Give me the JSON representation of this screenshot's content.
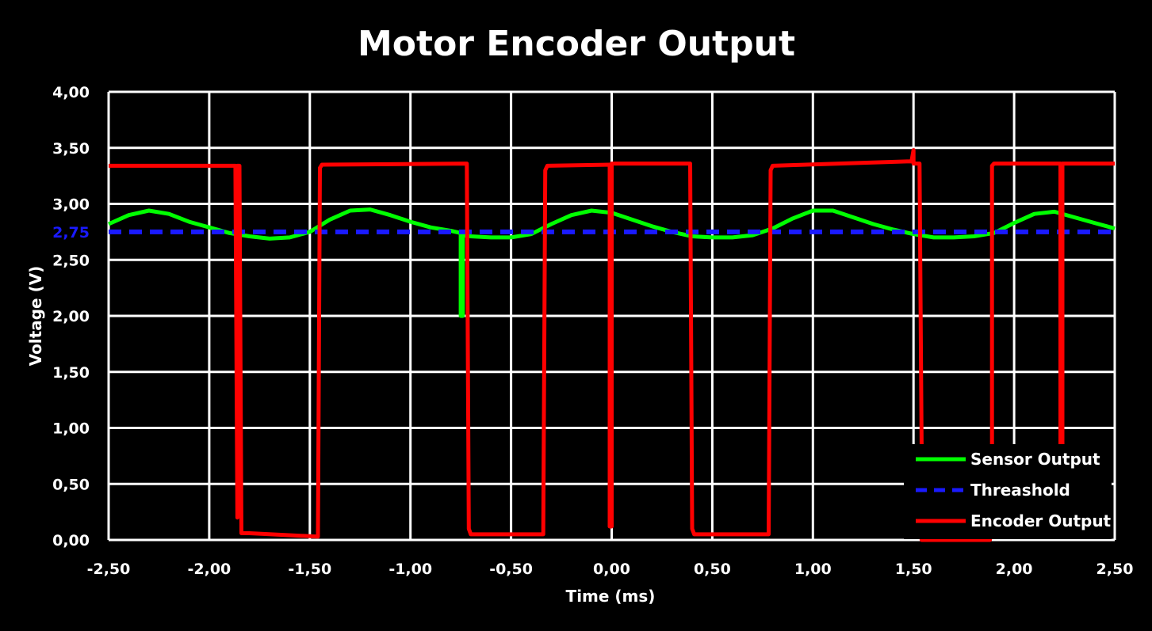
{
  "chart_data": {
    "type": "line",
    "title": "Motor Encoder Output",
    "xlabel": "Time (ms)",
    "ylabel": "Voltage (V)",
    "xlim": [
      -2.5,
      2.5
    ],
    "ylim": [
      0,
      4
    ],
    "x_ticks": [
      "-2,50",
      "-2,00",
      "-1,50",
      "-1,00",
      "-0,50",
      "0,00",
      "0,50",
      "1,00",
      "1,50",
      "2,00",
      "2,50"
    ],
    "y_ticks": [
      "0,00",
      "0,50",
      "1,00",
      "1,50",
      "2,00",
      "2,50",
      "3,00",
      "3,50",
      "4,00"
    ],
    "threshold_tick_label": "2,75",
    "grid": true,
    "legend_position": "bottom-right",
    "background": "#000000",
    "series": [
      {
        "name": "Sensor Output",
        "color": "#00ff00",
        "style": "solid",
        "x": [
          -2.5,
          -2.4,
          -2.3,
          -2.2,
          -2.1,
          -2.0,
          -1.9,
          -1.8,
          -1.7,
          -1.6,
          -1.5,
          -1.4,
          -1.3,
          -1.2,
          -1.1,
          -1.0,
          -0.9,
          -0.8,
          -0.75,
          -0.75,
          -0.74,
          -0.74,
          -0.7,
          -0.6,
          -0.5,
          -0.4,
          -0.3,
          -0.2,
          -0.1,
          0.0,
          0.1,
          0.2,
          0.3,
          0.4,
          0.5,
          0.6,
          0.7,
          0.8,
          0.9,
          1.0,
          1.1,
          1.2,
          1.3,
          1.4,
          1.5,
          1.6,
          1.7,
          1.8,
          1.9,
          2.0,
          2.1,
          2.2,
          2.3,
          2.4,
          2.5
        ],
        "y": [
          2.82,
          2.9,
          2.94,
          2.91,
          2.84,
          2.79,
          2.74,
          2.71,
          2.69,
          2.7,
          2.75,
          2.86,
          2.94,
          2.95,
          2.9,
          2.84,
          2.79,
          2.76,
          2.74,
          2.0,
          2.0,
          2.72,
          2.71,
          2.7,
          2.7,
          2.73,
          2.82,
          2.9,
          2.94,
          2.92,
          2.86,
          2.8,
          2.75,
          2.71,
          2.7,
          2.7,
          2.72,
          2.78,
          2.87,
          2.94,
          2.94,
          2.88,
          2.82,
          2.77,
          2.73,
          2.7,
          2.7,
          2.71,
          2.74,
          2.83,
          2.91,
          2.93,
          2.88,
          2.83,
          2.78
        ]
      },
      {
        "name": "Threashold",
        "color": "#1a1aff",
        "style": "dashed",
        "x": [
          -2.5,
          2.5
        ],
        "y": [
          2.75,
          2.75
        ]
      },
      {
        "name": "Encoder Output",
        "color": "#ff0000",
        "style": "solid",
        "x": [
          -2.5,
          -1.87,
          -1.86,
          -1.86,
          -1.85,
          -1.84,
          -1.84,
          -1.8,
          -1.46,
          -1.45,
          -1.44,
          -0.72,
          -0.71,
          -0.7,
          -0.34,
          -0.33,
          -0.32,
          -0.01,
          -0.01,
          0.0,
          0.0,
          0.39,
          0.4,
          0.41,
          0.78,
          0.79,
          0.8,
          1.49,
          1.5,
          1.5,
          1.53,
          1.54,
          1.54,
          1.88,
          1.89,
          1.89,
          1.9,
          2.23,
          2.23,
          2.24,
          2.24,
          2.5
        ],
        "y": [
          3.34,
          3.34,
          0.2,
          3.34,
          3.34,
          0.06,
          0.06,
          0.06,
          0.03,
          3.32,
          3.35,
          3.36,
          0.1,
          0.05,
          0.05,
          3.3,
          3.34,
          3.35,
          0.12,
          0.12,
          3.36,
          3.36,
          0.1,
          0.05,
          0.05,
          3.3,
          3.34,
          3.38,
          3.48,
          3.36,
          3.36,
          0.85,
          0.0,
          0.0,
          0.85,
          3.34,
          3.36,
          3.36,
          0.85,
          0.85,
          3.36,
          3.36
        ]
      }
    ]
  }
}
